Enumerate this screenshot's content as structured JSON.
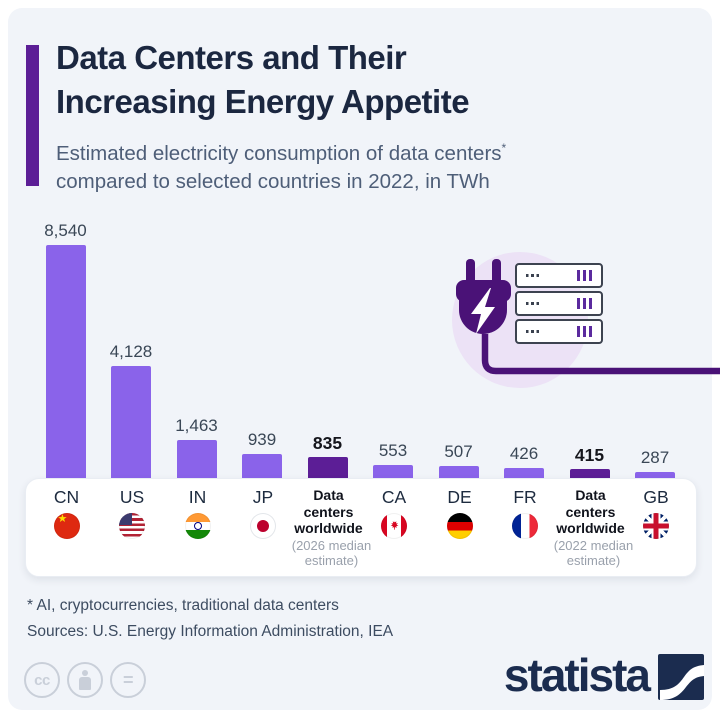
{
  "header": {
    "title_line1": "Data Centers and Their",
    "title_line2": "Increasing Energy Appetite",
    "subtitle_line1": "Estimated electricity consumption of data centers",
    "subtitle_sup": "*",
    "subtitle_line2": "compared to selected countries in 2022, in TWh"
  },
  "chart_data": {
    "type": "bar",
    "title": "Data Centers and Their Increasing Energy Appetite",
    "subtitle": "Estimated electricity consumption of data centers compared to selected countries in 2022, in TWh",
    "unit": "TWh",
    "ylim": [
      0,
      8540
    ],
    "grid": false,
    "categories": [
      "CN",
      "US",
      "IN",
      "JP",
      "Data centers worldwide (2026 median estimate)",
      "CA",
      "DE",
      "FR",
      "Data centers worldwide (2022 median estimate)",
      "GB"
    ],
    "values": [
      8540,
      4128,
      1463,
      939,
      835,
      553,
      507,
      426,
      415,
      287
    ],
    "items": [
      {
        "label": "CN",
        "flag": "cn",
        "value": 8540,
        "display": "8,540",
        "emphasis": false
      },
      {
        "label": "US",
        "flag": "us",
        "value": 4128,
        "display": "4,128",
        "emphasis": false
      },
      {
        "label": "IN",
        "flag": "in",
        "value": 1463,
        "display": "1,463",
        "emphasis": false
      },
      {
        "label": "JP",
        "flag": "jp",
        "value": 939,
        "display": "939",
        "emphasis": false
      },
      {
        "label": "Data centers worldwide",
        "sublabel": "(2026 median estimate)",
        "flag": null,
        "value": 835,
        "display": "835",
        "emphasis": true
      },
      {
        "label": "CA",
        "flag": "ca",
        "value": 553,
        "display": "553",
        "emphasis": false
      },
      {
        "label": "DE",
        "flag": "de",
        "value": 507,
        "display": "507",
        "emphasis": false
      },
      {
        "label": "FR",
        "flag": "fr",
        "value": 426,
        "display": "426",
        "emphasis": false
      },
      {
        "label": "Data centers worldwide",
        "sublabel": "(2022 median estimate)",
        "flag": null,
        "value": 415,
        "display": "415",
        "emphasis": true
      },
      {
        "label": "GB",
        "flag": "gb",
        "value": 287,
        "display": "287",
        "emphasis": false
      }
    ],
    "colors": {
      "bar": "#8a63ea",
      "bar_emphasis": "#5c1e96",
      "accent": "#5c1e96",
      "value_label": "#3a4756",
      "value_label_emphasis": "#15161c"
    }
  },
  "footer": {
    "footnote": "* AI, cryptocurrencies, traditional data centers",
    "sources": "Sources: U.S. Energy Information Administration, IEA",
    "brand": "statista",
    "license_icons": [
      "cc",
      "by",
      "nd"
    ]
  }
}
